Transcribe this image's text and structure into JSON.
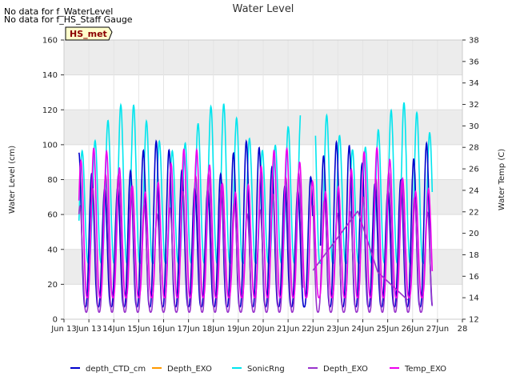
{
  "notes": [
    "No data for f_WaterLevel",
    "No data for f_HS_Staff Gauge"
  ],
  "station_badge": "HS_met",
  "chart_data": {
    "type": "line",
    "title": "Water Level",
    "ylabel": "Water Level (cm)",
    "y2label": "Water Temp (C)",
    "xlabel": "",
    "ylim": [
      0,
      160
    ],
    "y2lim": [
      12,
      38
    ],
    "xlim": [
      12,
      28
    ],
    "yticks": [
      0,
      20,
      40,
      60,
      80,
      100,
      120,
      140,
      160
    ],
    "y2ticks": [
      12,
      14,
      16,
      18,
      20,
      22,
      24,
      26,
      28,
      30,
      32,
      34,
      36,
      38
    ],
    "xticks": [
      12,
      13,
      14,
      15,
      16,
      17,
      18,
      19,
      20,
      21,
      22,
      23,
      24,
      25,
      26,
      27,
      28
    ],
    "xtick_labels": [
      "Jun 13",
      "Jun 13",
      "14Jun",
      "15Jun",
      "16Jun",
      "17Jun",
      "18Jun",
      "19Jun",
      "20Jun",
      "21Jun",
      "22Jun",
      "23Jun",
      "24Jun",
      "25Jun",
      "26Jun",
      "27Jun",
      "28"
    ],
    "grid": true,
    "legend_position": "bottom",
    "legend": [
      "depth_CTD_cm",
      "Depth_EXO",
      "SonicRng",
      "Depth_EXO",
      "Temp_EXO"
    ],
    "series": [
      {
        "name": "depth_CTD_cm",
        "color": "#0000cc",
        "axis": "left",
        "baseline": 7,
        "amplitude": 95,
        "period": 0.517,
        "phase": 0.25,
        "start": 12.6,
        "end": 26.8,
        "gaps": [
          [
            22.0,
            22.3
          ]
        ]
      },
      {
        "name": "Depth_EXO",
        "color": "#ff9900",
        "axis": "left",
        "baseline": 0,
        "amplitude": 0,
        "period": 0.517,
        "phase": 0.0,
        "start": 12.6,
        "end": 12.6,
        "gaps": []
      },
      {
        "name": "SonicRng",
        "color": "#00e5ee",
        "axis": "left",
        "baseline": 32,
        "amplitude": 92,
        "period": 0.517,
        "phase": 0.0,
        "start": 12.6,
        "end": 26.8,
        "gaps": [
          [
            21.5,
            22.1
          ]
        ]
      },
      {
        "name": "Depth_EXO",
        "color": "#9933cc",
        "axis": "left",
        "baseline": 4,
        "amplitude": 80,
        "period": 0.517,
        "phase": 0.18,
        "start": 12.6,
        "end": 26.8,
        "gaps": [
          [
            21.6,
            22.0
          ]
        ],
        "linear_segments": [
          {
            "x": [
              22.0,
              23.8
            ],
            "y": [
              28,
              62
            ]
          },
          {
            "x": [
              23.8,
              24.6
            ],
            "y": [
              62,
              27
            ]
          },
          {
            "x": [
              24.6,
              25.8
            ],
            "y": [
              27,
              11
            ]
          }
        ]
      },
      {
        "name": "Temp_EXO",
        "color": "#ee00ee",
        "axis": "right",
        "baseline": 14,
        "amplitude": 14,
        "period": 0.517,
        "phase": 0.1,
        "start": 12.6,
        "end": 26.8,
        "gaps": []
      }
    ]
  }
}
